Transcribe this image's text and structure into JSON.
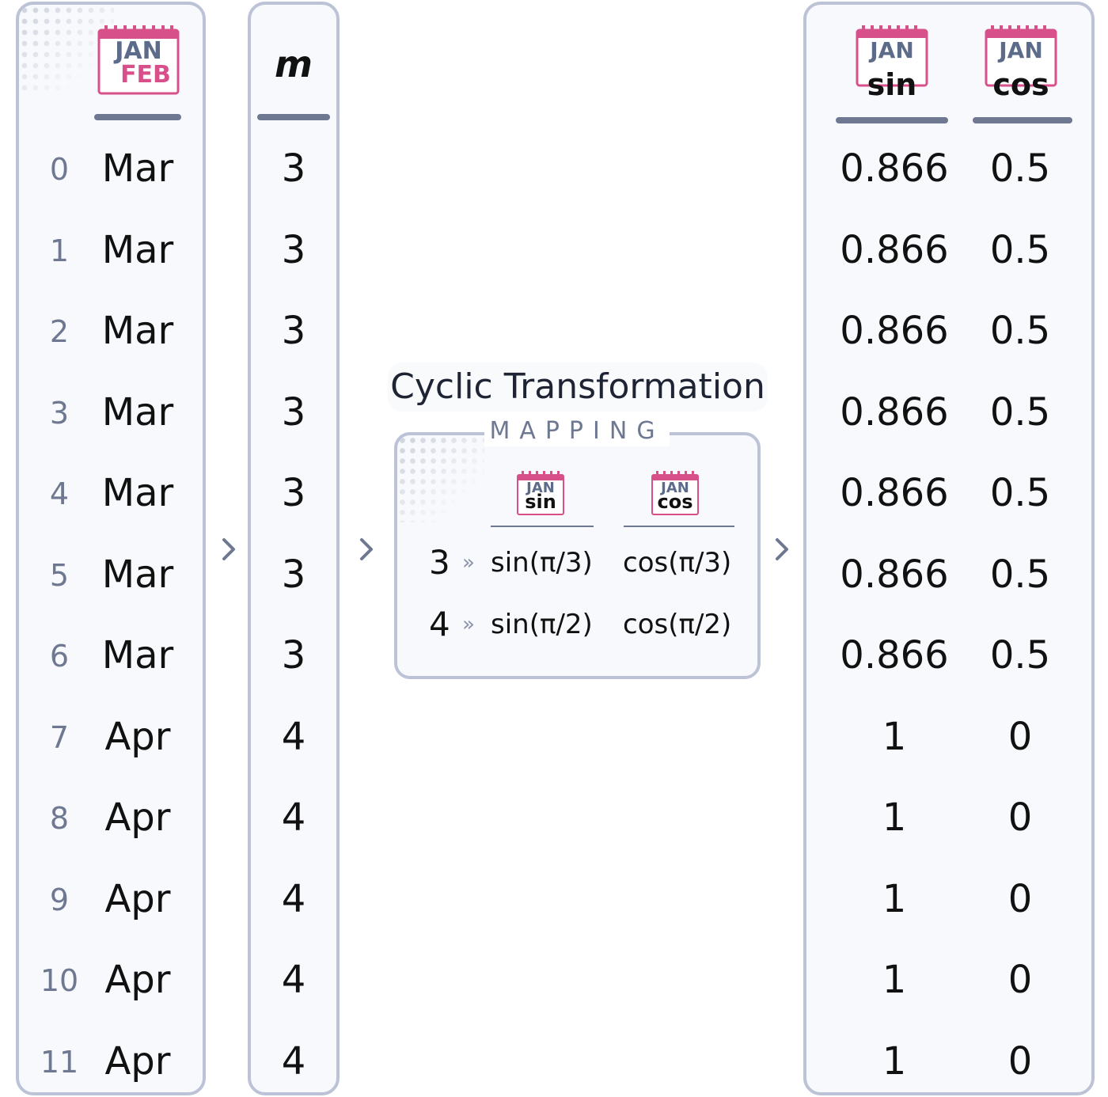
{
  "calendar_icon": {
    "top": "JAN",
    "bottom": "FEB",
    "sin_label": "sin",
    "cos_label": "cos"
  },
  "input_table": {
    "month_column_icon": "calendar-icon",
    "rows": [
      {
        "index": "0",
        "month": "Mar"
      },
      {
        "index": "1",
        "month": "Mar"
      },
      {
        "index": "2",
        "month": "Mar"
      },
      {
        "index": "3",
        "month": "Mar"
      },
      {
        "index": "4",
        "month": "Mar"
      },
      {
        "index": "5",
        "month": "Mar"
      },
      {
        "index": "6",
        "month": "Mar"
      },
      {
        "index": "7",
        "month": "Apr"
      },
      {
        "index": "8",
        "month": "Apr"
      },
      {
        "index": "9",
        "month": "Apr"
      },
      {
        "index": "10",
        "month": "Apr"
      },
      {
        "index": "11",
        "month": "Apr"
      }
    ]
  },
  "month_number_column": {
    "header": "m",
    "values": [
      "3",
      "3",
      "3",
      "3",
      "3",
      "3",
      "3",
      "4",
      "4",
      "4",
      "4",
      "4"
    ]
  },
  "mapping": {
    "title": "Cyclic Transformation",
    "label": "MAPPING",
    "arrow_glyph": "»",
    "rows": [
      {
        "m": "3",
        "sin": "sin(π/3)",
        "cos": "cos(π/3)"
      },
      {
        "m": "4",
        "sin": "sin(π/2)",
        "cos": "cos(π/2)"
      }
    ]
  },
  "output_table": {
    "rows": [
      {
        "sin": "0.866",
        "cos": "0.5"
      },
      {
        "sin": "0.866",
        "cos": "0.5"
      },
      {
        "sin": "0.866",
        "cos": "0.5"
      },
      {
        "sin": "0.866",
        "cos": "0.5"
      },
      {
        "sin": "0.866",
        "cos": "0.5"
      },
      {
        "sin": "0.866",
        "cos": "0.5"
      },
      {
        "sin": "0.866",
        "cos": "0.5"
      },
      {
        "sin": "1",
        "cos": "0"
      },
      {
        "sin": "1",
        "cos": "0"
      },
      {
        "sin": "1",
        "cos": "0"
      },
      {
        "sin": "1",
        "cos": "0"
      },
      {
        "sin": "1",
        "cos": "0"
      }
    ]
  },
  "colors": {
    "panel_border": "#bcc3d6",
    "panel_fill": "#f7f9fc",
    "header_rule": "#6e7891",
    "calendar_accent": "#d8508a",
    "calendar_text": "#5d6b8a"
  }
}
